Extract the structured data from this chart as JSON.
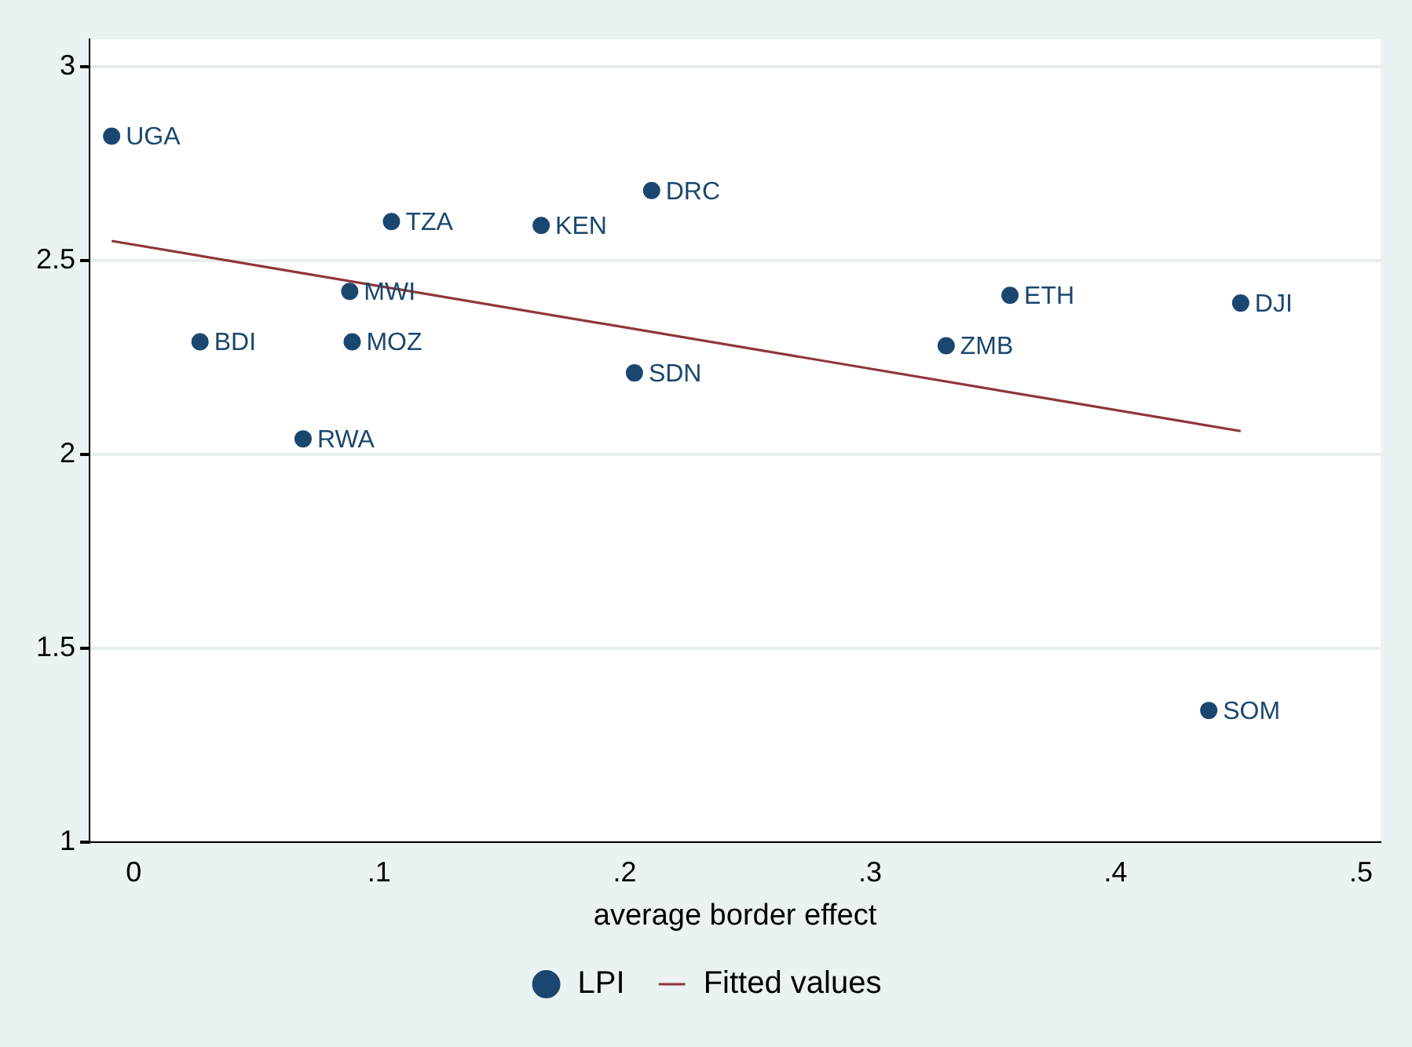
{
  "chart_data": {
    "type": "scatter",
    "xlabel": "average border effect",
    "xlim": [
      -0.018,
      0.508
    ],
    "xticks": [
      {
        "value": 0,
        "label": "0"
      },
      {
        "value": 0.1,
        "label": ".1"
      },
      {
        "value": 0.2,
        "label": ".2"
      },
      {
        "value": 0.3,
        "label": ".3"
      },
      {
        "value": 0.4,
        "label": ".4"
      },
      {
        "value": 0.5,
        "label": ".5"
      }
    ],
    "ylim": [
      1,
      3.07
    ],
    "yticks": [
      1,
      1.5,
      2,
      2.5,
      3
    ],
    "grid": "y",
    "legend": "bottom",
    "marker": "circle",
    "series": [
      {
        "name": "LPI",
        "color": "#1a476f",
        "x": [
          -0.009,
          0.027,
          0.069,
          0.088,
          0.089,
          0.105,
          0.166,
          0.204,
          0.211,
          0.331,
          0.357,
          0.438,
          0.451
        ],
        "values": [
          2.82,
          2.29,
          2.04,
          2.42,
          2.29,
          2.6,
          2.59,
          2.21,
          2.68,
          2.28,
          2.41,
          1.34,
          2.39
        ]
      },
      {
        "name": "Fitted values",
        "type": "line",
        "color": "#90353b",
        "marker": "none",
        "x": [
          -0.009,
          0.451
        ],
        "values": [
          2.55,
          2.06
        ]
      }
    ],
    "annotations": [
      {
        "text": "UGA",
        "x": -0.009,
        "y": 2.82
      },
      {
        "text": "BDI",
        "x": 0.027,
        "y": 2.29
      },
      {
        "text": "RWA",
        "x": 0.069,
        "y": 2.04
      },
      {
        "text": "MWI",
        "x": 0.088,
        "y": 2.42
      },
      {
        "text": "MOZ",
        "x": 0.089,
        "y": 2.29
      },
      {
        "text": "TZA",
        "x": 0.105,
        "y": 2.6
      },
      {
        "text": "KEN",
        "x": 0.166,
        "y": 2.59
      },
      {
        "text": "SDN",
        "x": 0.204,
        "y": 2.21
      },
      {
        "text": "DRC",
        "x": 0.211,
        "y": 2.68
      },
      {
        "text": "ZMB",
        "x": 0.331,
        "y": 2.28
      },
      {
        "text": "ETH",
        "x": 0.357,
        "y": 2.41
      },
      {
        "text": "SOM",
        "x": 0.438,
        "y": 1.34
      },
      {
        "text": "DJI",
        "x": 0.451,
        "y": 2.39
      }
    ]
  }
}
